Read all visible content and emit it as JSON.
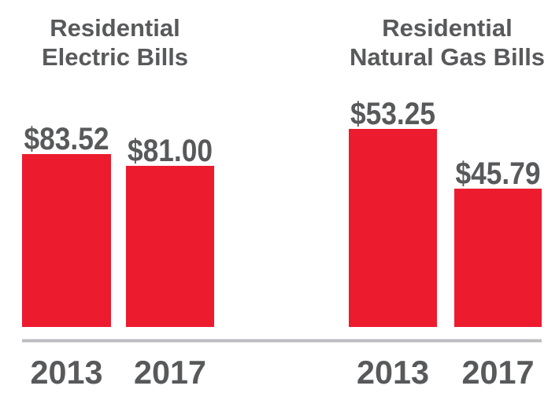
{
  "chart_data": {
    "type": "bar",
    "colors": {
      "bar": "#ed1b2e",
      "text": "#58595b",
      "axis": "#bcbdc0"
    },
    "panels": [
      {
        "title": [
          "Residential",
          "Electric Bills"
        ],
        "categories": [
          "2013",
          "2017"
        ],
        "values": [
          83.52,
          81.0
        ],
        "value_labels": [
          "$83.52",
          "$81.00"
        ],
        "ylim": [
          46.55,
          88.9
        ],
        "unit": "USD"
      },
      {
        "title": [
          "Residential",
          "Natural Gas Bills"
        ],
        "categories": [
          "2013",
          "2017"
        ],
        "values": [
          53.25,
          45.79
        ],
        "value_labels": [
          "$53.25",
          "$45.79"
        ],
        "ylim": [
          28.52,
          53.25
        ],
        "unit": "USD"
      }
    ],
    "xlabel": "",
    "ylabel": "",
    "grid": false,
    "legend": "none"
  }
}
